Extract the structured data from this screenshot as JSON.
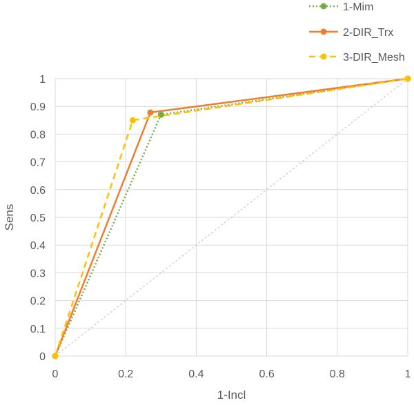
{
  "chart_data": {
    "type": "line",
    "title": "",
    "xlabel": "1-Incl",
    "ylabel": "Sens",
    "xlim": [
      0,
      1
    ],
    "ylim": [
      0,
      1
    ],
    "x_ticks": [
      "0",
      "0.2",
      "0.4",
      "0.6",
      "0.8",
      "1"
    ],
    "y_ticks": [
      "0",
      "0.1",
      "0.2",
      "0.3",
      "0.4",
      "0.5",
      "0.6",
      "0.7",
      "0.8",
      "0.9",
      "1"
    ],
    "grid": true,
    "legend_position": "top-right",
    "reference_line": {
      "x": [
        0,
        1
      ],
      "y": [
        0,
        1
      ],
      "color": "#bfbfbf",
      "style": "dotted"
    },
    "series": [
      {
        "name": "1-Mim",
        "color": "#70ad47",
        "style": "dotted",
        "x": [
          0,
          0.3,
          1
        ],
        "y": [
          0,
          0.87,
          1
        ]
      },
      {
        "name": "2-DIR_Trx",
        "color": "#ed7d31",
        "style": "solid",
        "x": [
          0,
          0.27,
          1
        ],
        "y": [
          0,
          0.878,
          1
        ]
      },
      {
        "name": "3-DIR_Mesh",
        "color": "#ffc000",
        "style": "dashed",
        "x": [
          0,
          0.22,
          1
        ],
        "y": [
          0,
          0.85,
          1
        ]
      }
    ]
  }
}
